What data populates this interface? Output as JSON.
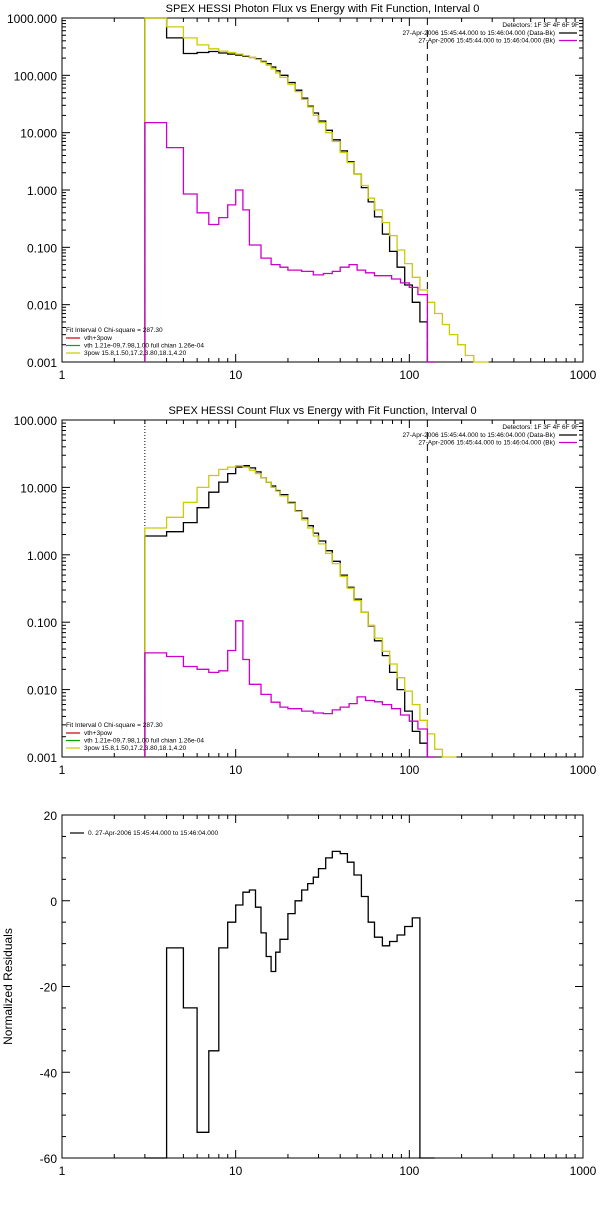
{
  "chart_data": [
    {
      "type": "line",
      "title": "SPEX HESSI Photon Flux vs Energy with Fit Function, Interval 0",
      "xscale": "log",
      "yscale": "log",
      "xlim": [
        1,
        1000
      ],
      "ylim": [
        0.001,
        1000
      ],
      "xticks": [
        "1",
        "10",
        "100",
        "1000"
      ],
      "yticks": [
        "0.001",
        "0.010",
        "0.100",
        "1.000",
        "10.000",
        "100.000",
        "1000.000"
      ],
      "xtick_values": [
        1,
        10,
        100,
        1000
      ],
      "ytick_values": [
        0.001,
        0.01,
        0.1,
        1,
        10,
        100,
        1000
      ],
      "legend_top": {
        "header": "Detectors: 1F 3F 4F 6F 9F",
        "entries": [
          {
            "label": "27-Apr-2006 15:45:44.000 to 15:46:04.000 (Data-Bk)",
            "color": "#000000"
          },
          {
            "label": "27-Apr-2006 15:45:44.000 to 15:46:04.000 (Bk)",
            "color": "#cc00cc"
          }
        ]
      },
      "legend_bottom": {
        "header": "Fit Interval 0   Chi-square = 287.30",
        "entries": [
          {
            "label": "vth+3pow",
            "color": "#cc0000"
          },
          {
            "label": "vth 1.21e-09,7.98,1.00  full chian 1.26e-04",
            "color": "#00aa00"
          },
          {
            "label": "3pow 15.8,1.50,17.2,3.80,18.1,4.20",
            "color": "#cccc00"
          }
        ]
      },
      "vlines": [
        {
          "x": 3,
          "style": "dotted",
          "color": "#000000"
        },
        {
          "x": 127,
          "style": "dashed",
          "color": "#000000"
        }
      ],
      "series": [
        {
          "name": "Data-Bk",
          "color": "#000000",
          "x": [
            3,
            4,
            5,
            6,
            7,
            8,
            9,
            10,
            11,
            12,
            13,
            14,
            15,
            16,
            17,
            18,
            20,
            22,
            24,
            26,
            28,
            30,
            33,
            36,
            40,
            44,
            48,
            53,
            58,
            63,
            70,
            77,
            85,
            94,
            104,
            115,
            127
          ],
          "y": [
            1000,
            450,
            240,
            250,
            260,
            245,
            235,
            225,
            215,
            205,
            195,
            175,
            160,
            140,
            120,
            100,
            75,
            55,
            40,
            29,
            22,
            16,
            11,
            7.5,
            4.8,
            3.1,
            1.9,
            1.1,
            0.62,
            0.34,
            0.17,
            0.085,
            0.045,
            0.022,
            0.011,
            0.005,
            0.001
          ]
        },
        {
          "name": "3pow",
          "color": "#cccc00",
          "x": [
            3,
            4,
            5,
            6,
            7,
            8,
            9,
            10,
            11,
            12,
            13,
            14,
            15,
            16,
            17,
            18,
            20,
            22,
            24,
            26,
            28,
            30,
            33,
            36,
            40,
            44,
            48,
            53,
            58,
            63,
            70,
            77,
            85,
            94,
            104,
            115,
            127,
            140,
            155,
            170,
            190,
            210,
            235,
            260
          ],
          "y": [
            1000,
            700,
            450,
            340,
            290,
            265,
            250,
            235,
            220,
            205,
            190,
            170,
            150,
            130,
            110,
            92,
            70,
            52,
            38,
            28,
            20,
            15,
            10,
            7,
            4.5,
            3,
            1.9,
            1.2,
            0.72,
            0.45,
            0.27,
            0.16,
            0.09,
            0.052,
            0.03,
            0.018,
            0.011,
            0.007,
            0.0045,
            0.003,
            0.002,
            0.0013,
            0.001,
            0.001
          ]
        },
        {
          "name": "Bk",
          "color": "#cc00cc",
          "x": [
            3,
            4,
            5,
            6,
            7,
            8,
            9,
            10,
            11,
            12,
            14,
            16,
            18,
            20,
            24,
            28,
            32,
            36,
            40,
            45,
            50,
            56,
            63,
            70,
            79,
            89,
            100,
            112,
            127
          ],
          "y": [
            15,
            5.5,
            0.85,
            0.4,
            0.25,
            0.33,
            0.55,
            1.0,
            0.45,
            0.11,
            0.065,
            0.05,
            0.045,
            0.04,
            0.038,
            0.033,
            0.035,
            0.038,
            0.045,
            0.05,
            0.04,
            0.036,
            0.032,
            0.032,
            0.028,
            0.024,
            0.02,
            0.015,
            0.001
          ]
        }
      ]
    },
    {
      "type": "line",
      "title": "SPEX HESSI Count Flux vs Energy with Fit Function, Interval 0",
      "xscale": "log",
      "yscale": "log",
      "xlim": [
        1,
        1000
      ],
      "ylim": [
        0.001,
        100
      ],
      "xticks": [
        "1",
        "10",
        "100",
        "1000"
      ],
      "yticks": [
        "0.001",
        "0.010",
        "0.100",
        "1.000",
        "10.000",
        "100.000"
      ],
      "xtick_values": [
        1,
        10,
        100,
        1000
      ],
      "ytick_values": [
        0.001,
        0.01,
        0.1,
        1,
        10,
        100
      ],
      "legend_top": {
        "header": "Detectors: 1F 3F 4F 6F 9F",
        "entries": [
          {
            "label": "27-Apr-2006 15:45:44.000 to 15:46:04.000 (Data-Bk)",
            "color": "#000000"
          },
          {
            "label": "27-Apr-2006 15:45:44.000 to 15:46:04.000 (Bk)",
            "color": "#cc00cc"
          }
        ]
      },
      "legend_bottom": {
        "header": "Fit Interval 0   Chi-square = 287.30",
        "entries": [
          {
            "label": "vth+3pow",
            "color": "#cc0000"
          },
          {
            "label": "vth 1.21e-09,7.98,1.00  full chian 1.26e-04",
            "color": "#00aa00"
          },
          {
            "label": "3pow 15.8,1.50,17.2,3.80,18.1,4.20",
            "color": "#cccc00"
          }
        ]
      },
      "vlines": [
        {
          "x": 3,
          "style": "dotted",
          "color": "#000000"
        },
        {
          "x": 127,
          "style": "dashed",
          "color": "#000000"
        }
      ],
      "series": [
        {
          "name": "Data-Bk",
          "color": "#000000",
          "x": [
            3,
            4,
            5,
            6,
            7,
            8,
            9,
            10,
            11,
            12,
            13,
            14,
            15,
            16,
            17,
            18,
            20,
            22,
            24,
            26,
            28,
            30,
            33,
            36,
            40,
            44,
            48,
            53,
            58,
            63,
            70,
            77,
            85,
            94,
            104,
            115,
            127
          ],
          "y": [
            1.9,
            2.2,
            3,
            5,
            8.5,
            12,
            16,
            20,
            21,
            19.5,
            17,
            14,
            12,
            10.5,
            9,
            7.8,
            6,
            4.5,
            3.5,
            2.7,
            2.1,
            1.6,
            1.15,
            0.8,
            0.5,
            0.33,
            0.22,
            0.14,
            0.088,
            0.053,
            0.032,
            0.018,
            0.01,
            0.0048,
            0.0024,
            0.0016,
            0.001
          ]
        },
        {
          "name": "3pow",
          "color": "#cccc00",
          "x": [
            3,
            4,
            5,
            6,
            7,
            8,
            9,
            10,
            11,
            12,
            13,
            14,
            15,
            16,
            17,
            18,
            20,
            22,
            24,
            26,
            28,
            30,
            33,
            36,
            40,
            44,
            48,
            53,
            58,
            63,
            70,
            77,
            85,
            94,
            104,
            115,
            127,
            140,
            155,
            170
          ],
          "y": [
            2.5,
            3.6,
            6,
            10,
            15,
            18.5,
            20,
            21,
            20,
            18,
            16,
            14,
            12,
            10,
            8.8,
            7.5,
            5.8,
            4.4,
            3.3,
            2.5,
            1.9,
            1.45,
            1.05,
            0.74,
            0.48,
            0.32,
            0.21,
            0.14,
            0.09,
            0.058,
            0.037,
            0.024,
            0.015,
            0.0095,
            0.006,
            0.0035,
            0.0022,
            0.0013,
            0.001,
            0.001
          ]
        },
        {
          "name": "Bk",
          "color": "#cc00cc",
          "x": [
            3,
            4,
            5,
            6,
            7,
            8,
            9,
            10,
            11,
            12,
            14,
            16,
            18,
            20,
            24,
            28,
            32,
            36,
            40,
            45,
            50,
            56,
            63,
            70,
            79,
            89,
            100,
            112,
            127
          ],
          "y": [
            0.035,
            0.031,
            0.022,
            0.02,
            0.018,
            0.019,
            0.038,
            0.105,
            0.028,
            0.012,
            0.0085,
            0.0065,
            0.0055,
            0.0052,
            0.0048,
            0.0045,
            0.0044,
            0.005,
            0.0055,
            0.0062,
            0.0078,
            0.0069,
            0.0066,
            0.006,
            0.0052,
            0.0042,
            0.0034,
            0.0026,
            0.001
          ]
        }
      ]
    },
    {
      "type": "line",
      "title": "",
      "xscale": "log",
      "yscale": "linear",
      "xlim": [
        1,
        1000
      ],
      "ylim": [
        -60,
        20
      ],
      "ylabel": "Normalized Residuals",
      "xticks": [
        "1",
        "10",
        "100",
        "1000"
      ],
      "yticks": [
        "-60",
        "-40",
        "-20",
        "0",
        "20"
      ],
      "xtick_values": [
        1,
        10,
        100,
        1000
      ],
      "ytick_values": [
        -60,
        -40,
        -20,
        0,
        20
      ],
      "legend_top": {
        "header": "",
        "entries": [
          {
            "label": "0. 27-Apr-2006 15:45:44.000 to 15:46:04.000",
            "color": "#000000"
          }
        ]
      },
      "series": [
        {
          "name": "0. 27-Apr-2006 15:45:44.000 to 15:46:04.000",
          "color": "#000000",
          "x": [
            3,
            4,
            5,
            6,
            7,
            8,
            9,
            10,
            11,
            12,
            13,
            14,
            15,
            16,
            17,
            18,
            20,
            22,
            24,
            26,
            28,
            30,
            33,
            36,
            40,
            44,
            48,
            53,
            58,
            63,
            70,
            77,
            85,
            94,
            104,
            115,
            127
          ],
          "y": [
            -60,
            -11,
            -25,
            -54,
            -35,
            -11,
            -5,
            -1,
            2,
            2.5,
            -1.5,
            -7.5,
            -13,
            -16.5,
            -12,
            -9,
            -3,
            0,
            2.5,
            4,
            5.5,
            7.5,
            10,
            11.5,
            11,
            9,
            6,
            1,
            -5,
            -8.5,
            -10.5,
            -9.5,
            -8,
            -6,
            -4,
            -60,
            -60
          ]
        }
      ]
    }
  ]
}
